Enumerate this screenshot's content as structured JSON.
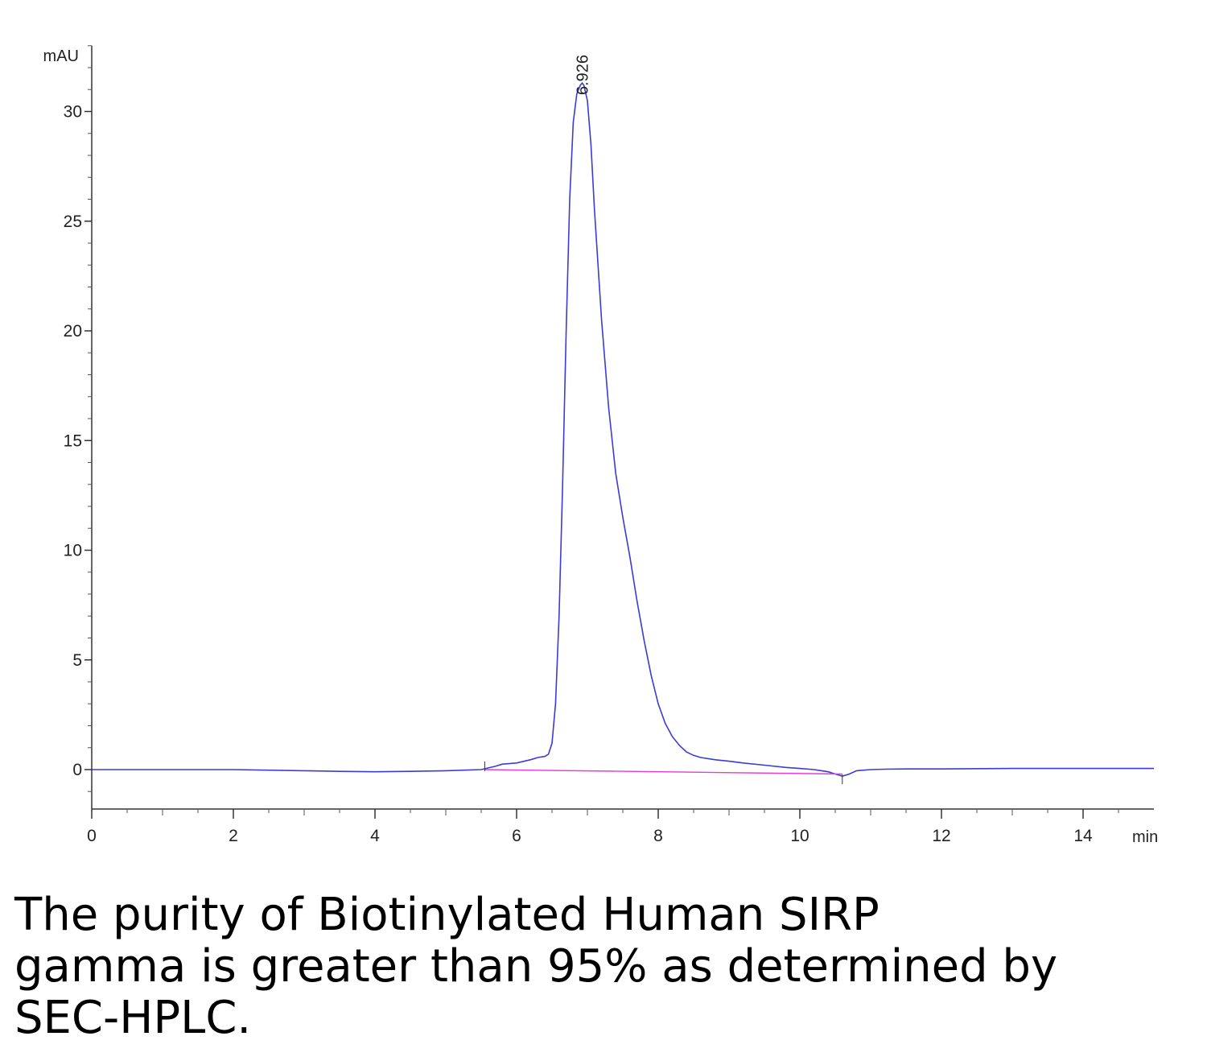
{
  "caption": "The purity of Biotinylated Human SIRP gamma is greater than 95% as determined by SEC-HPLC.",
  "chart_data": {
    "type": "line",
    "title": "",
    "xlabel": "min",
    "ylabel": "mAU",
    "xlim": [
      0,
      15
    ],
    "ylim": [
      -1.8,
      33
    ],
    "x_ticks": [
      0,
      2,
      4,
      6,
      8,
      10,
      12,
      14
    ],
    "x_tick_labels": [
      "0",
      "2",
      "4",
      "6",
      "8",
      "10",
      "12",
      "14"
    ],
    "y_ticks": [
      0,
      5,
      10,
      15,
      20,
      25,
      30
    ],
    "y_tick_labels": [
      "0",
      "5",
      "10",
      "15",
      "20",
      "25",
      "30"
    ],
    "grid": false,
    "peak_annotations": [
      {
        "x": 6.926,
        "label": "6.926"
      }
    ],
    "series": [
      {
        "color": "#3b3bd6",
        "x": [
          0,
          1,
          2,
          3,
          3.5,
          4,
          4.5,
          5,
          5.5,
          5.7,
          5.8,
          6.0,
          6.2,
          6.3,
          6.4,
          6.45,
          6.5,
          6.55,
          6.6,
          6.65,
          6.7,
          6.75,
          6.8,
          6.85,
          6.9,
          6.926,
          6.95,
          7.0,
          7.05,
          7.1,
          7.2,
          7.3,
          7.4,
          7.5,
          7.6,
          7.7,
          7.8,
          7.9,
          8.0,
          8.1,
          8.2,
          8.3,
          8.4,
          8.5,
          8.6,
          8.8,
          9.0,
          9.2,
          9.5,
          9.8,
          10.0,
          10.2,
          10.4,
          10.5,
          10.6,
          10.7,
          10.8,
          11.0,
          11.2,
          11.5,
          12,
          13,
          14,
          15
        ],
        "y": [
          0,
          0,
          0,
          -0.05,
          -0.08,
          -0.1,
          -0.08,
          -0.05,
          0,
          0.15,
          0.25,
          0.3,
          0.45,
          0.55,
          0.6,
          0.7,
          1.2,
          3.0,
          7.0,
          13.0,
          20.0,
          26.0,
          29.5,
          30.8,
          31.2,
          31.3,
          31.2,
          30.5,
          28.5,
          25.5,
          20.5,
          16.5,
          13.5,
          11.5,
          9.7,
          7.7,
          5.9,
          4.3,
          3.0,
          2.1,
          1.5,
          1.1,
          0.8,
          0.65,
          0.55,
          0.45,
          0.38,
          0.3,
          0.2,
          0.1,
          0.05,
          0.0,
          -0.1,
          -0.2,
          -0.3,
          -0.2,
          -0.05,
          0.0,
          0.02,
          0.03,
          0.03,
          0.05,
          0.05,
          0.05
        ]
      },
      {
        "color": "#e83ad8",
        "x": [
          5.55,
          10.6
        ],
        "y": [
          0,
          -0.2
        ]
      }
    ]
  }
}
